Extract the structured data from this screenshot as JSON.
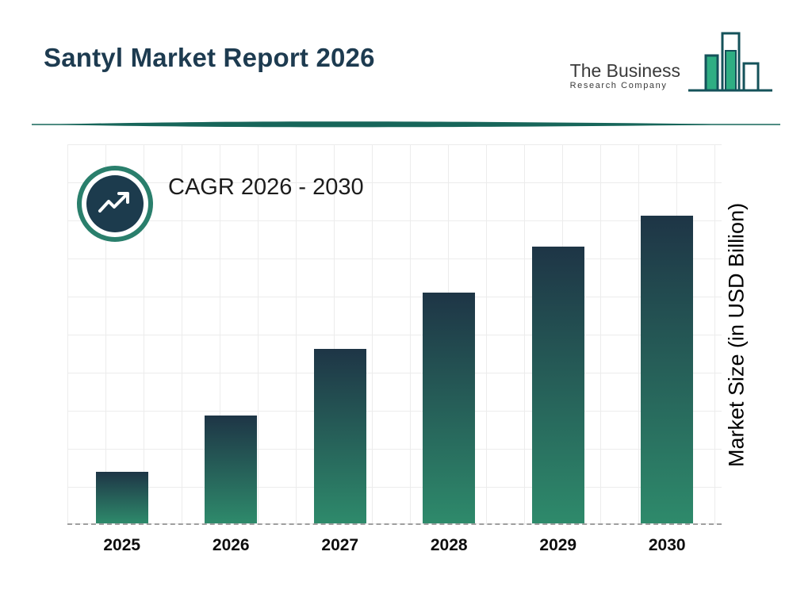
{
  "header": {
    "title": "Santyl Market Report 2026",
    "logo": {
      "line1": "The Business",
      "line2": "Research Company",
      "icon": "bar-chart-logo-icon"
    }
  },
  "cagr": {
    "label": "CAGR 2026 - 2030",
    "icon": "trend-arrow-icon"
  },
  "chart_data": {
    "type": "bar",
    "title": "Santyl Market Report 2026",
    "categories": [
      "2025",
      "2026",
      "2027",
      "2028",
      "2029",
      "2030"
    ],
    "values": [
      1.0,
      2.1,
      3.4,
      4.5,
      5.4,
      6.0
    ],
    "values_note": "no numeric axis shown; values estimated relative units from bar heights",
    "xlabel": "",
    "ylabel": "Market Size (in USD Billion)",
    "ylim": [
      0,
      7.4
    ],
    "grid": true,
    "legend": "none",
    "annotations": [
      "CAGR 2026 - 2030"
    ]
  },
  "colors": {
    "title_text": "#1d3b50",
    "bar_gradient_top": "#1e3546",
    "bar_gradient_bottom": "#2e8a6b",
    "divider_teal": "#17665a",
    "badge_ring": "#2a7f6c",
    "badge_fill": "#1c3b4d",
    "logo_outline": "#14525a",
    "logo_green": "#2fae83",
    "grid_line": "#ececec",
    "axis_dash": "#9f9f9f"
  }
}
